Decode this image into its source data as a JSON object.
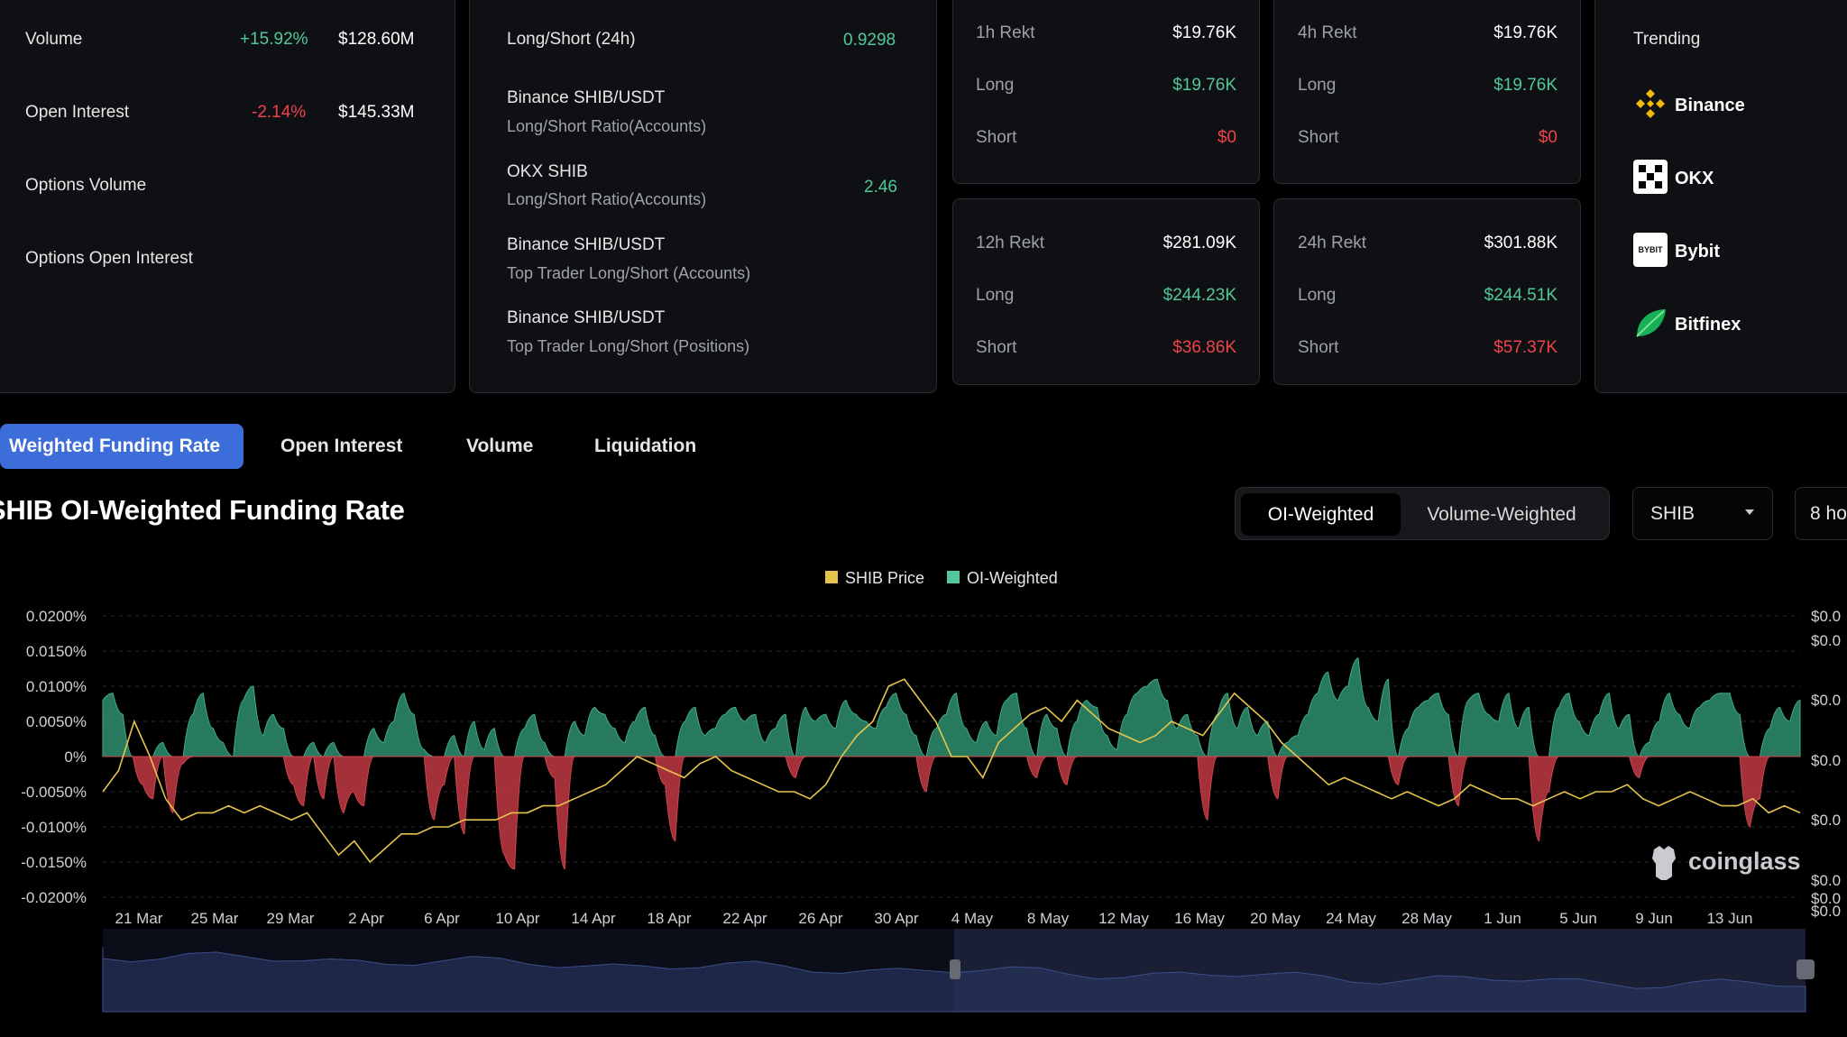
{
  "market": {
    "volume": {
      "label": "Volume",
      "change": "+15.92%",
      "value": "$128.60M"
    },
    "open_interest": {
      "label": "Open Interest",
      "change": "-2.14%",
      "value": "$145.33M"
    },
    "options_volume": {
      "label": "Options Volume"
    },
    "options_open_interest": {
      "label": "Options Open Interest"
    }
  },
  "ratios": {
    "long_short_24h": {
      "label": "Long/Short (24h)",
      "value": "0.9298"
    },
    "binance_accounts": {
      "title": "Binance SHIB/USDT",
      "subtitle": "Long/Short Ratio(Accounts)"
    },
    "okx_accounts": {
      "title": "OKX SHIB",
      "subtitle": "Long/Short Ratio(Accounts)",
      "value": "2.46"
    },
    "binance_top_accounts": {
      "title": "Binance SHIB/USDT",
      "subtitle": "Top Trader Long/Short (Accounts)"
    },
    "binance_top_positions": {
      "title": "Binance SHIB/USDT",
      "subtitle": "Top Trader Long/Short (Positions)"
    }
  },
  "rekt": {
    "h1": {
      "title": "1h Rekt",
      "total": "$19.76K",
      "long_label": "Long",
      "long": "$19.76K",
      "short_label": "Short",
      "short": "$0"
    },
    "h4": {
      "title": "4h Rekt",
      "total": "$19.76K",
      "long_label": "Long",
      "long": "$19.76K",
      "short_label": "Short",
      "short": "$0"
    },
    "h12": {
      "title": "12h Rekt",
      "total": "$281.09K",
      "long_label": "Long",
      "long": "$244.23K",
      "short_label": "Short",
      "short": "$36.86K"
    },
    "h24": {
      "title": "24h Rekt",
      "total": "$301.88K",
      "long_label": "Long",
      "long": "$244.51K",
      "short_label": "Short",
      "short": "$57.37K"
    }
  },
  "trending": {
    "title": "Trending",
    "exchanges": [
      {
        "name": "Binance",
        "icon": "binance-icon"
      },
      {
        "name": "OKX",
        "icon": "okx-icon"
      },
      {
        "name": "Bybit",
        "icon": "bybit-icon",
        "logo_text": "BYBIT"
      },
      {
        "name": "Bitfinex",
        "icon": "bitfinex-icon"
      }
    ]
  },
  "tabs": [
    "Weighted Funding Rate",
    "Open Interest",
    "Volume",
    "Liquidation"
  ],
  "active_tab": "Weighted Funding Rate",
  "chart_title": "SHIB OI-Weighted Funding Rate",
  "weighting": {
    "options": [
      "OI-Weighted",
      "Volume-Weighted"
    ],
    "selected": "OI-Weighted"
  },
  "coin_select": {
    "value": "SHIB"
  },
  "interval_select": {
    "value": "8 ho"
  },
  "watermark": "coinglass",
  "colors": {
    "positive": "#2f8f70",
    "negative": "#b6363f",
    "price": "#e6c44c",
    "accent": "#3c6dd8",
    "background": "#000000"
  },
  "chart_data": {
    "type": "area",
    "legend": [
      "SHIB Price",
      "OI-Weighted"
    ],
    "legend_position": "top-center",
    "y_left_ticks": [
      "0.0200%",
      "0.0150%",
      "0.0100%",
      "0.0050%",
      "0%",
      "-0.0050%",
      "-0.0100%",
      "-0.0150%",
      "-0.0200%"
    ],
    "y_left_range": [
      -0.02,
      0.02
    ],
    "y_right_ticks": [
      "$0.0",
      "$0.0",
      "$0.0",
      "$0.0",
      "$0.0",
      "$0.0",
      "$0.0",
      "$0.0"
    ],
    "x_ticks": [
      "21 Mar",
      "25 Mar",
      "29 Mar",
      "2 Apr",
      "6 Apr",
      "10 Apr",
      "14 Apr",
      "18 Apr",
      "22 Apr",
      "26 Apr",
      "30 Apr",
      "4 May",
      "8 May",
      "12 May",
      "16 May",
      "20 May",
      "24 May",
      "28 May",
      "1 Jun",
      "5 Jun",
      "9 Jun",
      "13 Jun"
    ],
    "grid": true,
    "series": [
      {
        "name": "OI-Weighted",
        "unit": "%",
        "values": [
          0.008,
          0.009,
          0.006,
          0.0,
          -0.004,
          -0.006,
          0.002,
          -0.008,
          -0.001,
          0.006,
          0.009,
          0.004,
          0.002,
          -0.0,
          0.008,
          0.01,
          0.003,
          0.006,
          0.004,
          -0.004,
          -0.007,
          0.002,
          -0.006,
          0.002,
          -0.008,
          -0.005,
          -0.007,
          0.004,
          0.002,
          0.005,
          0.009,
          0.006,
          0.001,
          -0.009,
          -0.004,
          0.003,
          -0.011,
          0.005,
          0.001,
          0.004,
          -0.014,
          -0.016,
          0.004,
          0.006,
          0.002,
          -0.003,
          -0.016,
          0.005,
          0.003,
          0.007,
          0.006,
          0.004,
          0.002,
          0.005,
          0.007,
          0.003,
          -0.004,
          -0.012,
          0.005,
          0.007,
          0.003,
          0.004,
          0.006,
          0.007,
          0.005,
          0.006,
          0.002,
          0.004,
          0.006,
          -0.003,
          0.007,
          0.005,
          0.006,
          0.004,
          0.008,
          0.006,
          0.005,
          0.004,
          0.007,
          0.009,
          0.006,
          0.003,
          -0.005,
          0.004,
          0.006,
          0.009,
          0.004,
          0.002,
          0.005,
          0.003,
          0.008,
          0.009,
          0.004,
          -0.003,
          0.006,
          0.004,
          -0.004,
          0.005,
          0.008,
          0.007,
          0.003,
          0.001,
          0.006,
          0.009,
          0.01,
          0.011,
          0.008,
          0.004,
          0.006,
          0.003,
          -0.009,
          0.006,
          0.009,
          0.004,
          0.007,
          0.003,
          0.005,
          -0.006,
          0.002,
          0.003,
          0.006,
          0.009,
          0.012,
          0.008,
          0.01,
          0.014,
          0.007,
          0.005,
          0.011,
          -0.004,
          0.004,
          0.007,
          0.008,
          0.009,
          0.006,
          -0.007,
          0.008,
          0.009,
          0.006,
          0.005,
          0.009,
          0.004,
          0.007,
          -0.012,
          -0.005,
          0.007,
          0.009,
          0.005,
          0.003,
          0.006,
          0.009,
          0.004,
          0.006,
          -0.003,
          0.002,
          0.005,
          0.009,
          0.006,
          0.004,
          0.007,
          0.008,
          0.009,
          0.009,
          0.006,
          -0.01,
          -0.006,
          0.004,
          0.007,
          0.005,
          0.008
        ]
      },
      {
        "name": "SHIB Price",
        "unit": "$",
        "values": [
          -0.005,
          -0.002,
          0.005,
          0.0,
          -0.006,
          -0.009,
          -0.008,
          -0.008,
          -0.007,
          -0.008,
          -0.007,
          -0.008,
          -0.009,
          -0.008,
          -0.011,
          -0.014,
          -0.012,
          -0.015,
          -0.013,
          -0.011,
          -0.011,
          -0.01,
          -0.01,
          -0.009,
          -0.009,
          -0.009,
          -0.008,
          -0.008,
          -0.007,
          -0.007,
          -0.006,
          -0.005,
          -0.004,
          -0.002,
          0.0,
          -0.001,
          -0.002,
          -0.003,
          -0.001,
          0.0,
          -0.002,
          -0.003,
          -0.004,
          -0.005,
          -0.005,
          -0.006,
          -0.004,
          0.0,
          0.003,
          0.005,
          0.01,
          0.011,
          0.008,
          0.005,
          0.0,
          0.0,
          -0.003,
          0.002,
          0.004,
          0.006,
          0.007,
          0.005,
          0.008,
          0.006,
          0.004,
          0.003,
          0.002,
          0.003,
          0.005,
          0.004,
          0.003,
          0.006,
          0.009,
          0.007,
          0.005,
          0.002,
          0.0,
          -0.002,
          -0.004,
          -0.003,
          -0.004,
          -0.005,
          -0.006,
          -0.005,
          -0.006,
          -0.007,
          -0.006,
          -0.004,
          -0.005,
          -0.006,
          -0.006,
          -0.007,
          -0.006,
          -0.005,
          -0.006,
          -0.005,
          -0.005,
          -0.004,
          -0.006,
          -0.007,
          -0.006,
          -0.005,
          -0.006,
          -0.007,
          -0.007,
          -0.006,
          -0.008,
          -0.007,
          -0.008
        ]
      }
    ]
  }
}
